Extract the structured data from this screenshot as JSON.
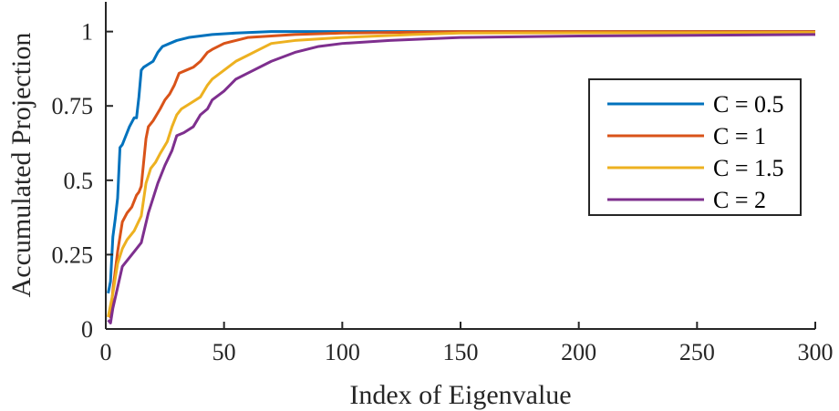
{
  "chart_data": {
    "type": "line",
    "title": "",
    "xlabel": "Index of Eigenvalue",
    "ylabel": "Accumulated Projection",
    "xlim": [
      0,
      300
    ],
    "ylim": [
      0,
      1.1
    ],
    "xticks": [
      0,
      50,
      100,
      150,
      200,
      250,
      300
    ],
    "yticks": [
      0,
      0.25,
      0.5,
      0.75,
      1
    ],
    "xtick_labels": [
      "0",
      "50",
      "100",
      "150",
      "200",
      "250",
      "300"
    ],
    "ytick_labels": [
      "0",
      "0.25",
      "0.5",
      "0.75",
      "1"
    ],
    "grid": false,
    "legend_position": "right",
    "colors": {
      "axis": "#262626",
      "legend_border": "#262626"
    },
    "series": [
      {
        "name": "C = 0.5",
        "color": "#0072BD",
        "x": [
          1,
          2,
          3,
          4,
          5,
          6,
          7,
          8,
          10,
          12,
          13,
          14,
          15,
          16,
          18,
          20,
          22,
          24,
          27,
          30,
          35,
          40,
          45,
          55,
          70,
          100,
          150,
          300
        ],
        "y": [
          0.12,
          0.16,
          0.31,
          0.37,
          0.44,
          0.61,
          0.62,
          0.64,
          0.68,
          0.71,
          0.71,
          0.78,
          0.87,
          0.88,
          0.89,
          0.9,
          0.93,
          0.95,
          0.96,
          0.97,
          0.98,
          0.985,
          0.99,
          0.995,
          1.0,
          1.0,
          1.0,
          1.0
        ]
      },
      {
        "name": "C = 1",
        "color": "#D95319",
        "x": [
          1,
          2,
          3,
          5,
          7,
          9,
          11,
          13,
          14,
          15,
          17,
          18,
          20,
          23,
          25,
          27,
          29,
          31,
          34,
          37,
          40,
          43,
          45,
          50,
          55,
          60,
          70,
          80,
          100,
          150,
          300
        ],
        "y": [
          0.05,
          0.04,
          0.13,
          0.26,
          0.36,
          0.39,
          0.41,
          0.45,
          0.46,
          0.48,
          0.64,
          0.68,
          0.7,
          0.74,
          0.77,
          0.79,
          0.82,
          0.86,
          0.87,
          0.88,
          0.9,
          0.93,
          0.94,
          0.96,
          0.97,
          0.98,
          0.985,
          0.99,
          0.995,
          1.0,
          1.0
        ]
      },
      {
        "name": "C = 1.5",
        "color": "#EDB120",
        "x": [
          1,
          3,
          5,
          7,
          9,
          12,
          15,
          17,
          19,
          21,
          23,
          26,
          28,
          30,
          32,
          36,
          40,
          43,
          45,
          50,
          55,
          60,
          65,
          70,
          80,
          100,
          130,
          150,
          300
        ],
        "y": [
          0.04,
          0.12,
          0.22,
          0.27,
          0.3,
          0.33,
          0.38,
          0.49,
          0.54,
          0.56,
          0.59,
          0.63,
          0.68,
          0.72,
          0.74,
          0.76,
          0.78,
          0.82,
          0.84,
          0.87,
          0.9,
          0.92,
          0.94,
          0.96,
          0.97,
          0.98,
          0.99,
          0.995,
          0.997
        ]
      },
      {
        "name": "C = 2",
        "color": "#7E2F8E",
        "x": [
          1,
          2,
          3,
          5,
          7,
          9,
          12,
          15,
          18,
          20,
          22,
          25,
          28,
          30,
          33,
          37,
          40,
          43,
          45,
          50,
          55,
          60,
          70,
          80,
          90,
          100,
          120,
          150,
          200,
          300
        ],
        "y": [
          0.03,
          0.02,
          0.07,
          0.14,
          0.21,
          0.23,
          0.26,
          0.29,
          0.39,
          0.44,
          0.49,
          0.55,
          0.6,
          0.65,
          0.66,
          0.68,
          0.72,
          0.74,
          0.77,
          0.8,
          0.84,
          0.86,
          0.9,
          0.93,
          0.95,
          0.96,
          0.97,
          0.98,
          0.985,
          0.99
        ]
      }
    ]
  }
}
